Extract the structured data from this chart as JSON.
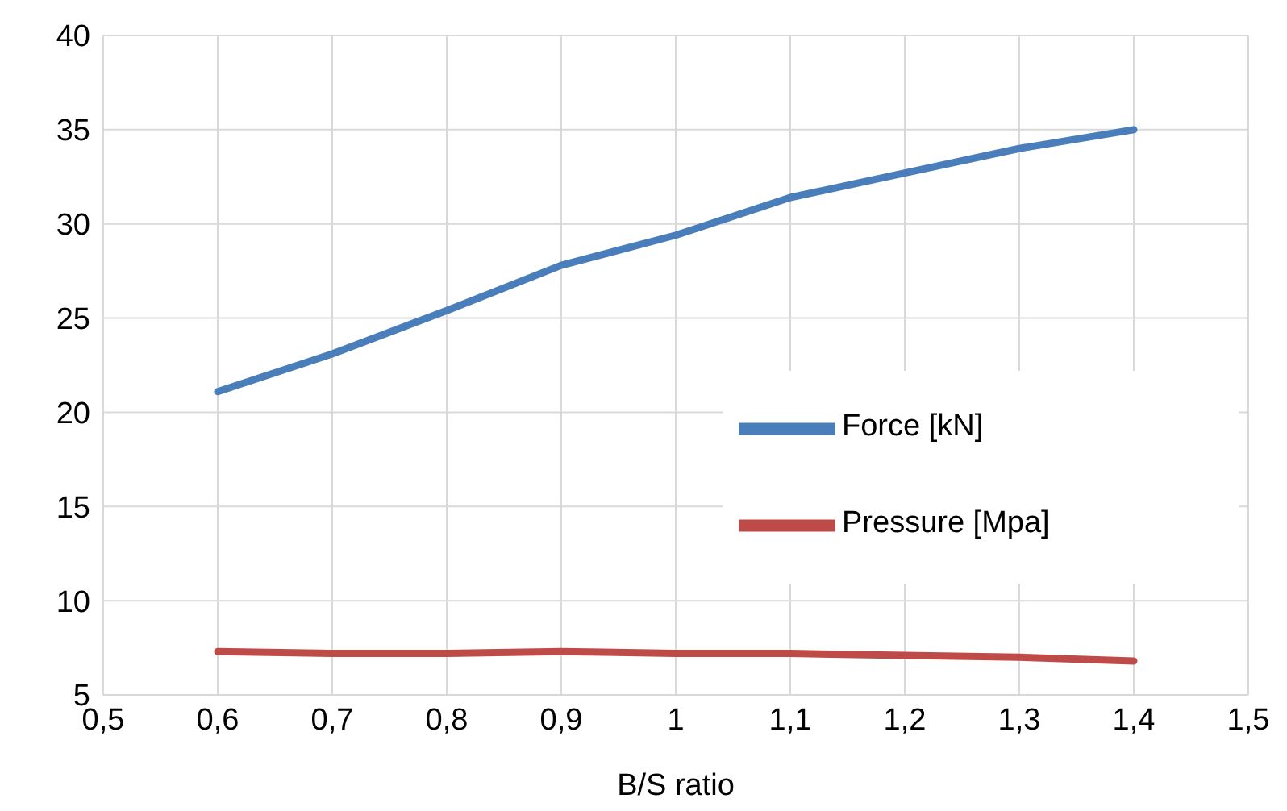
{
  "chart_data": {
    "type": "line",
    "xlabel": "B/S ratio",
    "x": [
      0.6,
      0.7,
      0.8,
      0.9,
      1.0,
      1.1,
      1.2,
      1.3,
      1.4
    ],
    "series": [
      {
        "name": "Force [kN]",
        "color": "#4a7ebb",
        "values": [
          21.1,
          23.1,
          25.4,
          27.8,
          29.4,
          31.4,
          32.7,
          34.0,
          35.0
        ]
      },
      {
        "name": "Pressure [Mpa]",
        "color": "#be4b48",
        "values": [
          7.3,
          7.2,
          7.2,
          7.3,
          7.2,
          7.2,
          7.1,
          7.0,
          6.8
        ]
      }
    ],
    "xlim": [
      0.5,
      1.5
    ],
    "xticks": [
      {
        "value": 0.5,
        "label": "0,5"
      },
      {
        "value": 0.6,
        "label": "0,6"
      },
      {
        "value": 0.7,
        "label": "0,7"
      },
      {
        "value": 0.8,
        "label": "0,8"
      },
      {
        "value": 0.9,
        "label": "0,9"
      },
      1,
      {
        "value": 1.1,
        "label": "1,1"
      },
      {
        "value": 1.2,
        "label": "1,2"
      },
      {
        "value": 1.3,
        "label": "1,3"
      },
      {
        "value": 1.4,
        "label": "1,4"
      },
      {
        "value": 1.5,
        "label": "1,5"
      }
    ],
    "ylim": [
      5,
      40
    ],
    "yticks": [
      5,
      10,
      15,
      20,
      25,
      30,
      35,
      40
    ],
    "grid": true,
    "legend": "right",
    "marker": "none",
    "line_style": "solid"
  }
}
